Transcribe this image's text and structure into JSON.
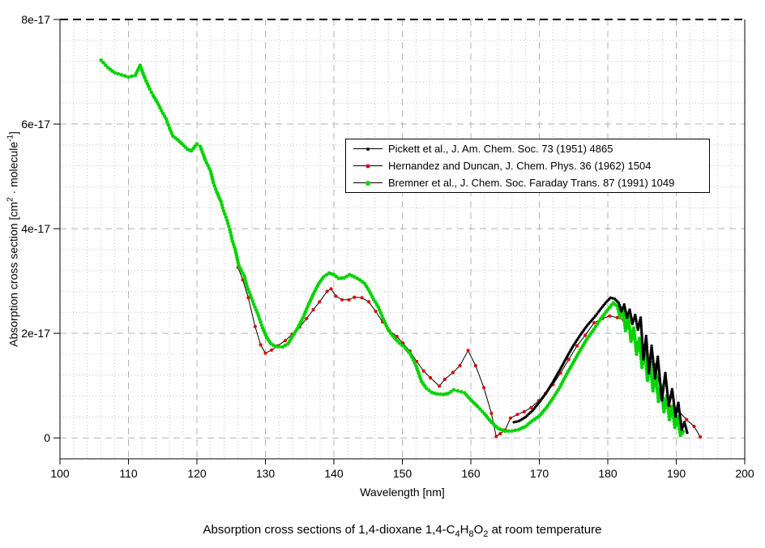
{
  "axes": {
    "x": {
      "label": "Wavelength [nm]",
      "min": 100,
      "max": 200,
      "major_ticks": [
        100,
        110,
        120,
        130,
        140,
        150,
        160,
        170,
        180,
        190,
        200
      ],
      "minor_step": 2
    },
    "y": {
      "label_parts": {
        "pre": "Absorption cross section [cm",
        "sup1": "2",
        "mid": " · molecule",
        "sup2": "-1",
        "post": "]"
      },
      "min": -0.4,
      "max": 8,
      "unit_scale": "1e-17",
      "ticks": [
        {
          "v": 8,
          "label": "8e-17"
        },
        {
          "v": 6,
          "label": "6e-17"
        },
        {
          "v": 4,
          "label": "4e-17"
        },
        {
          "v": 2,
          "label": "2e-17"
        },
        {
          "v": 0,
          "label": "0"
        }
      ],
      "minor_step": 0.4
    }
  },
  "caption_parts": {
    "p1": "Absorption cross sections of 1,4-dioxane 1,4-C",
    "s1": "4",
    "p2": "H",
    "s2": "8",
    "p3": "O",
    "s3": "2",
    "p4": " at room temperature"
  },
  "grid": {
    "major_color": "#b3b3b3",
    "minor_color": "#c4c4c4",
    "top_border_color": "#000000"
  },
  "chart_data": {
    "type": "line",
    "title": "Absorption cross sections of 1,4-dioxane 1,4-C4H8O2 at room temperature",
    "xlabel": "Wavelength [nm]",
    "ylabel": "Absorption cross section [cm2 · molecule-1]",
    "x_range": [
      100,
      200
    ],
    "y_range_1e17": [
      -0.4,
      8
    ],
    "legend_position": "upper middle",
    "grid": true,
    "series": [
      {
        "name": "Pickett et al., J. Am. Chem. Soc. 73 (1951) 4865",
        "line_color": "#000000",
        "marker_color": "#000000",
        "marker_radius": 1.7,
        "marker_spacing_px": 2.6,
        "points": [
          [
            166.3,
            0.3
          ],
          [
            167.0,
            0.32
          ],
          [
            168.0,
            0.4
          ],
          [
            169.0,
            0.52
          ],
          [
            170.0,
            0.68
          ],
          [
            171.0,
            0.86
          ],
          [
            172.0,
            1.07
          ],
          [
            173.0,
            1.3
          ],
          [
            174.0,
            1.54
          ],
          [
            175.0,
            1.77
          ],
          [
            176.0,
            1.97
          ],
          [
            177.0,
            2.15
          ],
          [
            178.0,
            2.3
          ],
          [
            179.0,
            2.47
          ],
          [
            179.8,
            2.6
          ],
          [
            180.4,
            2.68
          ],
          [
            181.0,
            2.66
          ],
          [
            181.6,
            2.58
          ],
          [
            182.0,
            2.42
          ],
          [
            182.4,
            2.55
          ],
          [
            182.8,
            2.3
          ],
          [
            183.2,
            2.45
          ],
          [
            183.6,
            2.18
          ],
          [
            184.0,
            2.35
          ],
          [
            184.4,
            2.07
          ],
          [
            184.8,
            2.3
          ],
          [
            185.2,
            1.5
          ],
          [
            185.6,
            1.95
          ],
          [
            186.0,
            1.24
          ],
          [
            186.4,
            1.76
          ],
          [
            186.9,
            1.14
          ],
          [
            187.3,
            1.55
          ],
          [
            187.9,
            0.72
          ],
          [
            188.4,
            1.24
          ],
          [
            188.9,
            0.62
          ],
          [
            189.4,
            0.93
          ],
          [
            189.9,
            0.41
          ],
          [
            190.3,
            0.67
          ],
          [
            190.8,
            0.16
          ],
          [
            191.2,
            0.3
          ],
          [
            191.6,
            0.1
          ]
        ]
      },
      {
        "name": "Hernandez and Duncan, J. Chem. Phys. 36 (1962) 1504",
        "line_color": "#000000",
        "marker_color": "#e00000",
        "marker_radius": 2.1,
        "marker_spacing_px": 0,
        "points": [
          [
            126.0,
            3.26
          ],
          [
            126.7,
            3.02
          ],
          [
            127.5,
            2.68
          ],
          [
            128.5,
            2.13
          ],
          [
            129.3,
            1.78
          ],
          [
            130.0,
            1.62
          ],
          [
            130.9,
            1.68
          ],
          [
            131.8,
            1.76
          ],
          [
            132.9,
            1.86
          ],
          [
            133.9,
            1.98
          ],
          [
            135.0,
            2.12
          ],
          [
            136.0,
            2.28
          ],
          [
            137.0,
            2.45
          ],
          [
            137.9,
            2.6
          ],
          [
            139.0,
            2.8
          ],
          [
            139.6,
            2.85
          ],
          [
            140.3,
            2.71
          ],
          [
            141.2,
            2.64
          ],
          [
            142.2,
            2.64
          ],
          [
            143.0,
            2.69
          ],
          [
            144.1,
            2.68
          ],
          [
            145.1,
            2.6
          ],
          [
            146.1,
            2.42
          ],
          [
            147.1,
            2.22
          ],
          [
            148.1,
            2.05
          ],
          [
            149.2,
            1.94
          ],
          [
            150.1,
            1.81
          ],
          [
            151.1,
            1.66
          ],
          [
            152.1,
            1.46
          ],
          [
            153.1,
            1.28
          ],
          [
            154.1,
            1.15
          ],
          [
            155.4,
            0.99
          ],
          [
            156.2,
            1.12
          ],
          [
            157.4,
            1.25
          ],
          [
            158.4,
            1.38
          ],
          [
            159.6,
            1.67
          ],
          [
            160.7,
            1.38
          ],
          [
            161.9,
            0.96
          ],
          [
            163.0,
            0.47
          ],
          [
            163.7,
            0.03
          ],
          [
            164.3,
            0.08
          ],
          [
            165.0,
            0.15
          ],
          [
            165.8,
            0.38
          ],
          [
            166.8,
            0.45
          ],
          [
            167.8,
            0.5
          ],
          [
            168.8,
            0.58
          ],
          [
            169.9,
            0.71
          ],
          [
            170.9,
            0.85
          ],
          [
            172.0,
            1.02
          ],
          [
            173.1,
            1.24
          ],
          [
            174.3,
            1.5
          ],
          [
            175.5,
            1.76
          ],
          [
            176.7,
            1.96
          ],
          [
            178.0,
            2.2
          ],
          [
            179.2,
            2.28
          ],
          [
            180.3,
            2.33
          ],
          [
            181.4,
            2.3
          ],
          [
            182.3,
            2.26
          ],
          [
            183.4,
            2.0
          ],
          [
            184.5,
            1.78
          ],
          [
            185.6,
            1.55
          ],
          [
            186.9,
            1.4
          ],
          [
            187.9,
            0.82
          ],
          [
            189.2,
            0.6
          ],
          [
            190.3,
            0.52
          ],
          [
            191.5,
            0.35
          ],
          [
            192.6,
            0.22
          ],
          [
            193.5,
            0.02
          ]
        ]
      },
      {
        "name": "Bremner et al., J. Chem. Soc. Faraday Trans. 87 (1991) 1049",
        "line_color": "#000000",
        "marker_color": "#00d300",
        "marker_radius": 2.3,
        "marker_spacing_px": 3.6,
        "points": [
          [
            106.0,
            7.22
          ],
          [
            107.0,
            7.08
          ],
          [
            108.0,
            6.98
          ],
          [
            109.0,
            6.94
          ],
          [
            110.0,
            6.9
          ],
          [
            111.0,
            6.93
          ],
          [
            111.7,
            7.12
          ],
          [
            112.4,
            6.88
          ],
          [
            113.1,
            6.67
          ],
          [
            113.6,
            6.55
          ],
          [
            114.2,
            6.42
          ],
          [
            114.8,
            6.26
          ],
          [
            115.5,
            6.1
          ],
          [
            116.0,
            5.92
          ],
          [
            116.5,
            5.77
          ],
          [
            117.2,
            5.7
          ],
          [
            118.0,
            5.6
          ],
          [
            118.6,
            5.52
          ],
          [
            119.2,
            5.49
          ],
          [
            120.0,
            5.62
          ],
          [
            120.5,
            5.57
          ],
          [
            121.2,
            5.32
          ],
          [
            122.0,
            5.1
          ],
          [
            122.4,
            4.88
          ],
          [
            122.9,
            4.7
          ],
          [
            123.5,
            4.52
          ],
          [
            123.9,
            4.34
          ],
          [
            124.4,
            4.16
          ],
          [
            124.8,
            3.98
          ],
          [
            125.2,
            3.76
          ],
          [
            125.6,
            3.6
          ],
          [
            126.1,
            3.3
          ],
          [
            126.9,
            3.1
          ],
          [
            127.3,
            2.9
          ],
          [
            127.8,
            2.73
          ],
          [
            128.3,
            2.56
          ],
          [
            129.0,
            2.33
          ],
          [
            129.6,
            2.1
          ],
          [
            130.2,
            1.92
          ],
          [
            130.8,
            1.8
          ],
          [
            131.5,
            1.75
          ],
          [
            132.5,
            1.74
          ],
          [
            133.3,
            1.8
          ],
          [
            134.0,
            1.95
          ],
          [
            134.8,
            2.12
          ],
          [
            135.5,
            2.3
          ],
          [
            136.2,
            2.52
          ],
          [
            137.0,
            2.75
          ],
          [
            137.8,
            2.95
          ],
          [
            138.5,
            3.08
          ],
          [
            139.3,
            3.15
          ],
          [
            140.0,
            3.12
          ],
          [
            140.7,
            3.05
          ],
          [
            141.5,
            3.06
          ],
          [
            142.3,
            3.12
          ],
          [
            143.0,
            3.08
          ],
          [
            143.8,
            3.02
          ],
          [
            144.5,
            2.95
          ],
          [
            145.2,
            2.8
          ],
          [
            145.8,
            2.65
          ],
          [
            146.5,
            2.5
          ],
          [
            147.2,
            2.28
          ],
          [
            148.0,
            2.05
          ],
          [
            148.8,
            1.92
          ],
          [
            149.6,
            1.81
          ],
          [
            150.4,
            1.72
          ],
          [
            151.2,
            1.6
          ],
          [
            152.0,
            1.38
          ],
          [
            152.8,
            1.08
          ],
          [
            153.5,
            0.95
          ],
          [
            154.3,
            0.87
          ],
          [
            155.1,
            0.84
          ],
          [
            156.0,
            0.83
          ],
          [
            156.7,
            0.85
          ],
          [
            157.5,
            0.92
          ],
          [
            158.1,
            0.9
          ],
          [
            159.1,
            0.86
          ],
          [
            159.9,
            0.74
          ],
          [
            161.0,
            0.6
          ],
          [
            162.0,
            0.46
          ],
          [
            163.0,
            0.3
          ],
          [
            164.0,
            0.18
          ],
          [
            165.0,
            0.13
          ],
          [
            166.0,
            0.13
          ],
          [
            167.0,
            0.16
          ],
          [
            168.0,
            0.22
          ],
          [
            169.0,
            0.33
          ],
          [
            170.0,
            0.42
          ],
          [
            171.0,
            0.57
          ],
          [
            172.0,
            0.76
          ],
          [
            173.0,
            0.97
          ],
          [
            174.0,
            1.22
          ],
          [
            175.0,
            1.45
          ],
          [
            176.0,
            1.68
          ],
          [
            177.0,
            1.9
          ],
          [
            178.0,
            2.08
          ],
          [
            179.0,
            2.28
          ],
          [
            180.0,
            2.45
          ],
          [
            180.8,
            2.58
          ],
          [
            181.4,
            2.52
          ],
          [
            181.8,
            2.3
          ],
          [
            182.2,
            2.48
          ],
          [
            182.6,
            2.05
          ],
          [
            183.0,
            2.3
          ],
          [
            183.4,
            1.85
          ],
          [
            183.8,
            2.1
          ],
          [
            184.2,
            1.6
          ],
          [
            184.6,
            1.9
          ],
          [
            185.0,
            1.35
          ],
          [
            185.4,
            1.7
          ],
          [
            185.8,
            1.1
          ],
          [
            186.2,
            1.45
          ],
          [
            186.6,
            0.9
          ],
          [
            187.0,
            1.25
          ],
          [
            187.4,
            0.7
          ],
          [
            187.8,
            1.0
          ],
          [
            188.2,
            0.5
          ],
          [
            188.6,
            0.8
          ],
          [
            189.0,
            0.35
          ],
          [
            189.4,
            0.6
          ],
          [
            189.8,
            0.2
          ],
          [
            190.2,
            0.4
          ],
          [
            190.6,
            0.05
          ],
          [
            191.0,
            0.12
          ]
        ]
      }
    ]
  }
}
